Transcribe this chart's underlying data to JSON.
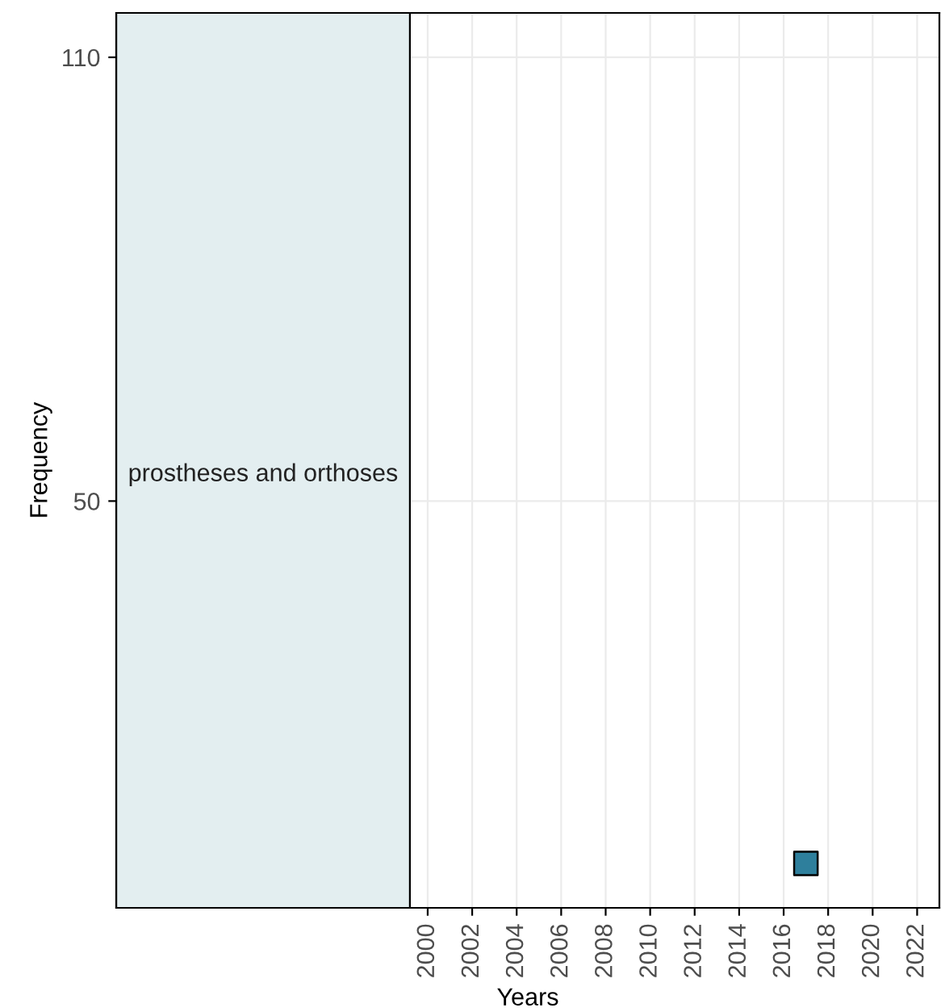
{
  "chart_data": {
    "type": "scatter",
    "xlabel": "Years",
    "ylabel": "Frequency",
    "series": [
      {
        "color": "#2e7f9c",
        "x": [
          2017
        ],
        "values": [
          1
        ]
      }
    ],
    "marker": "square",
    "xlim": [
      1986,
      2023
    ],
    "xticks": [
      2000,
      2002,
      2004,
      2006,
      2008,
      2010,
      2012,
      2014,
      2016,
      2018,
      2020,
      2022
    ],
    "ylim": [
      -5,
      116
    ],
    "yticks": [
      50,
      110
    ],
    "bands": [
      {
        "axis": "x",
        "from": 1986,
        "to": 1999.2,
        "label": "prostheses and orthoses",
        "color": "#e3eef0"
      }
    ],
    "grid": true,
    "legend": false
  }
}
